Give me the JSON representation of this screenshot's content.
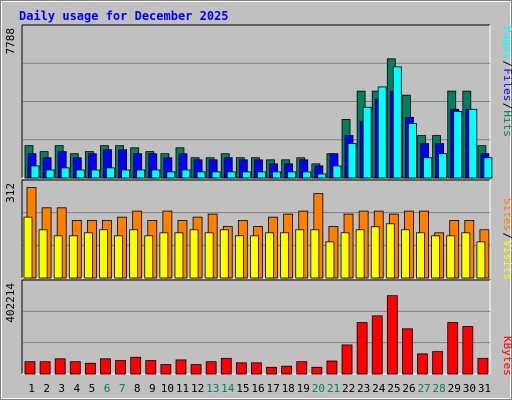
{
  "title": "Daily usage for December 2025",
  "colors": {
    "hits": "#00805c",
    "files": "#0000ff",
    "pages": "#00ffff",
    "visits": "#ffff00",
    "sites": "#ff8000",
    "kbytes": "#ff0000",
    "title": "#0000ff",
    "weekend": "#00805c",
    "weekday": "#000000",
    "plot_bg": "#c0c0c0",
    "frame_bg": "#c0c0c0"
  },
  "legend": {
    "top": [
      "Pages",
      "/",
      "Files",
      "/",
      "Hits"
    ],
    "middle": [
      "Sites",
      "/",
      "Visits"
    ],
    "bottom": [
      "KBytes"
    ]
  },
  "chart_data": [
    {
      "type": "bar",
      "panel": "hits-files-pages",
      "ymax_label": "7788",
      "ylim": [
        0,
        7788
      ],
      "x": [
        1,
        2,
        3,
        4,
        5,
        6,
        7,
        8,
        9,
        10,
        11,
        12,
        13,
        14,
        15,
        16,
        17,
        18,
        19,
        20,
        21,
        22,
        23,
        24,
        25,
        26,
        27,
        28,
        29,
        30,
        31
      ],
      "series": [
        {
          "name": "Hits",
          "values": [
            1690,
            1380,
            1690,
            1270,
            1380,
            1690,
            1690,
            1580,
            1380,
            1270,
            1580,
            1060,
            1060,
            1270,
            1060,
            1060,
            950,
            950,
            1060,
            740,
            1270,
            3060,
            4540,
            4540,
            6230,
            4330,
            2220,
            2220,
            4540,
            4540,
            1690
          ]
        },
        {
          "name": "Files",
          "values": [
            1270,
            1060,
            1380,
            1060,
            1270,
            1480,
            1480,
            1270,
            1270,
            1060,
            1270,
            950,
            950,
            1060,
            950,
            950,
            740,
            740,
            950,
            630,
            1270,
            2220,
            2960,
            4120,
            4540,
            3170,
            1800,
            1800,
            3590,
            3590,
            1270
          ]
        },
        {
          "name": "Pages",
          "values": [
            630,
            420,
            530,
            420,
            420,
            530,
            420,
            420,
            420,
            320,
            420,
            320,
            320,
            320,
            320,
            320,
            320,
            320,
            320,
            210,
            630,
            1800,
            3700,
            4760,
            5810,
            2850,
            1060,
            1270,
            3480,
            3590,
            1060
          ]
        }
      ],
      "days": [
        "1",
        "2",
        "3",
        "4",
        "5",
        "6",
        "7",
        "8",
        "9",
        "10",
        "11",
        "12",
        "13",
        "14",
        "15",
        "16",
        "17",
        "18",
        "19",
        "20",
        "21",
        "22",
        "23",
        "24",
        "25",
        "26",
        "27",
        "28",
        "29",
        "30",
        "31"
      ],
      "weekend_days": [
        6,
        7,
        13,
        14,
        20,
        21,
        27,
        28
      ]
    },
    {
      "type": "bar",
      "panel": "sites-visits",
      "ymax_label": "312",
      "ylim": [
        0,
        312
      ],
      "series": [
        {
          "name": "Sites",
          "values": [
            300,
            233,
            233,
            191,
            191,
            191,
            202,
            222,
            191,
            222,
            191,
            202,
            212,
            171,
            191,
            171,
            202,
            212,
            222,
            280,
            171,
            212,
            222,
            222,
            212,
            222,
            222,
            150,
            191,
            191,
            160
          ]
        },
        {
          "name": "Visits",
          "values": [
            202,
            160,
            140,
            140,
            150,
            160,
            140,
            160,
            140,
            150,
            150,
            160,
            150,
            160,
            140,
            140,
            150,
            150,
            160,
            160,
            120,
            150,
            160,
            170,
            180,
            160,
            150,
            140,
            140,
            150,
            120
          ]
        }
      ]
    },
    {
      "type": "bar",
      "panel": "kbytes",
      "ymax_label": "402214",
      "ylim": [
        0,
        402214
      ],
      "series": [
        {
          "name": "KBytes",
          "values": [
            55000,
            55000,
            68000,
            55000,
            48000,
            68000,
            60000,
            75000,
            60000,
            42000,
            63000,
            42000,
            55000,
            70000,
            50000,
            50000,
            30000,
            35000,
            55000,
            30000,
            58000,
            130000,
            230000,
            260000,
            350000,
            202000,
            90000,
            100000,
            230000,
            212000,
            70000
          ]
        }
      ]
    }
  ]
}
